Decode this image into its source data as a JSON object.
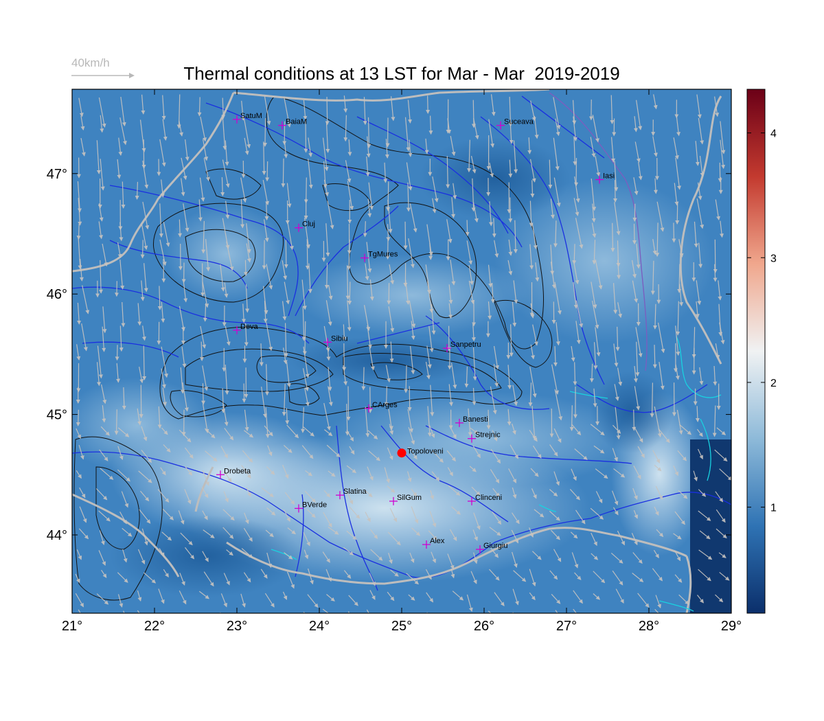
{
  "title": "Thermal conditions at 13 LST for Mar - Mar  2019-2019",
  "wind_reference": {
    "label": "40km/h",
    "color": "#b8b8b8"
  },
  "map": {
    "lon_range": [
      21,
      29
    ],
    "lat_range": [
      43.35,
      47.7
    ],
    "x_ticks": [
      "21°",
      "22°",
      "23°",
      "24°",
      "25°",
      "26°",
      "27°",
      "28°",
      "29°"
    ],
    "y_ticks": [
      "44°",
      "45°",
      "46°",
      "47°"
    ],
    "background_colors": {
      "low": "#1f5f9e",
      "mid": "#4d8ec8",
      "high": "#c9dfee"
    },
    "river_color": "#1a2fe0",
    "border_color": "#bdbdbd",
    "contour_color": "#111111",
    "wind_arrow_color": "#c8c4c0",
    "marker_color": "#d000d0"
  },
  "cities": [
    {
      "name": "SatuM",
      "lon": 23.0,
      "lat": 47.45
    },
    {
      "name": "BaiaM",
      "lon": 23.55,
      "lat": 47.4
    },
    {
      "name": "Suceava",
      "lon": 26.2,
      "lat": 47.4
    },
    {
      "name": "Iasi",
      "lon": 27.4,
      "lat": 46.95
    },
    {
      "name": "Cluj",
      "lon": 23.75,
      "lat": 46.55
    },
    {
      "name": "TgMures",
      "lon": 24.55,
      "lat": 46.3
    },
    {
      "name": "Deva",
      "lon": 23.0,
      "lat": 45.7
    },
    {
      "name": "Sibiu",
      "lon": 24.1,
      "lat": 45.6
    },
    {
      "name": "Sanpetru",
      "lon": 25.55,
      "lat": 45.55
    },
    {
      "name": "CArges",
      "lon": 24.6,
      "lat": 45.05
    },
    {
      "name": "Banesti",
      "lon": 25.7,
      "lat": 44.93
    },
    {
      "name": "Strejnic",
      "lon": 25.85,
      "lat": 44.8
    },
    {
      "name": "Drobeta",
      "lon": 22.8,
      "lat": 44.5
    },
    {
      "name": "Slatina",
      "lon": 24.25,
      "lat": 44.33
    },
    {
      "name": "SilGum",
      "lon": 24.9,
      "lat": 44.28
    },
    {
      "name": "Clinceni",
      "lon": 25.85,
      "lat": 44.28
    },
    {
      "name": "BVerde",
      "lon": 23.75,
      "lat": 44.22
    },
    {
      "name": "Alex",
      "lon": 25.3,
      "lat": 43.92
    },
    {
      "name": "Giurgiu",
      "lon": 25.95,
      "lat": 43.88
    }
  ],
  "highlight_site": {
    "name": "Topoloveni",
    "lon": 25.0,
    "lat": 44.68,
    "color": "#ff0000"
  },
  "colorbar": {
    "range": [
      0.15,
      4.35
    ],
    "ticks": [
      "1",
      "2",
      "3",
      "4"
    ],
    "tick_values": [
      1,
      2,
      3,
      4
    ],
    "colors": [
      "#0b2f6b",
      "#2f73b4",
      "#8ebad9",
      "#f0f2f3",
      "#f0a78d",
      "#c33a2f",
      "#6b0017"
    ]
  }
}
